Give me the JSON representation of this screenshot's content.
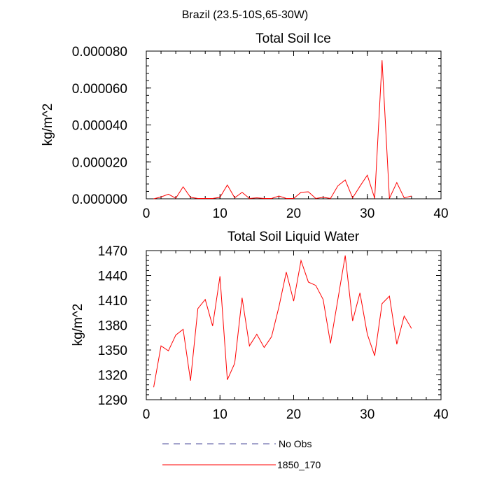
{
  "figure": {
    "suptitle": "Brazil (23.5-10S,65-30W)",
    "legend": [
      {
        "label": "No Obs",
        "color": "#4a4a9a",
        "style": "dashed"
      },
      {
        "label": "1850_170",
        "color": "#ff0000",
        "style": "solid"
      }
    ]
  },
  "chart_data": [
    {
      "type": "line",
      "title": "Total Soil Ice",
      "xlabel": "",
      "ylabel": "kg/m^2",
      "xlim": [
        0,
        40
      ],
      "ylim": [
        0,
        8e-05
      ],
      "xticks": [
        0,
        10,
        20,
        30,
        40
      ],
      "xticklabels": [
        "0",
        "10",
        "20",
        "30",
        "40"
      ],
      "yticks": [
        0,
        2e-05,
        4e-05,
        6e-05,
        8e-05
      ],
      "yticklabels": [
        "0.000000",
        "0.000020",
        "0.000040",
        "0.000060",
        "0.000080"
      ],
      "grid": false,
      "series": [
        {
          "name": "1850_170",
          "color": "#ff0000",
          "x": [
            1,
            2,
            3,
            4,
            5,
            6,
            7,
            8,
            9,
            10,
            11,
            12,
            13,
            14,
            15,
            16,
            17,
            18,
            19,
            20,
            21,
            22,
            23,
            24,
            25,
            26,
            27,
            28,
            29,
            30,
            31,
            32,
            33,
            34,
            35,
            36
          ],
          "y": [
            0,
            1e-06,
            2.5e-06,
            3e-07,
            6.5e-06,
            8e-07,
            2e-07,
            2e-07,
            2e-07,
            8e-07,
            7.5e-06,
            5e-07,
            3.5e-06,
            2e-07,
            5e-07,
            2e-07,
            2e-07,
            1.5e-06,
            2e-07,
            2e-07,
            3.5e-06,
            3.8e-06,
            2e-07,
            8e-07,
            2e-07,
            7e-06,
            1.02e-05,
            5e-07,
            6.8e-06,
            1.28e-05,
            2e-07,
            7.5e-05,
            2e-07,
            8.8e-06,
            5e-07,
            1.5e-06
          ]
        }
      ]
    },
    {
      "type": "line",
      "title": "Total Soil Liquid Water",
      "xlabel": "",
      "ylabel": "kg/m^2",
      "xlim": [
        0,
        40
      ],
      "ylim": [
        1290,
        1470
      ],
      "xticks": [
        0,
        10,
        20,
        30,
        40
      ],
      "xticklabels": [
        "0",
        "10",
        "20",
        "30",
        "40"
      ],
      "yticks": [
        1290,
        1320,
        1350,
        1380,
        1410,
        1440,
        1470
      ],
      "yticklabels": [
        "1290",
        "1320",
        "1350",
        "1380",
        "1410",
        "1440",
        "1470"
      ],
      "grid": false,
      "series": [
        {
          "name": "1850_170",
          "color": "#ff0000",
          "x": [
            1,
            2,
            3,
            4,
            5,
            6,
            7,
            8,
            9,
            10,
            11,
            12,
            13,
            14,
            15,
            16,
            17,
            18,
            19,
            20,
            21,
            22,
            23,
            24,
            25,
            26,
            27,
            28,
            29,
            30,
            31,
            32,
            33,
            34,
            35,
            36
          ],
          "y": [
            1305,
            1355,
            1349,
            1368,
            1375,
            1313,
            1400,
            1411,
            1379,
            1439,
            1314,
            1334,
            1413,
            1355,
            1369,
            1353,
            1366,
            1402,
            1444,
            1409,
            1458,
            1432,
            1428,
            1411,
            1358,
            1411,
            1464,
            1385,
            1419,
            1369,
            1343,
            1406,
            1415,
            1357,
            1391,
            1376
          ]
        }
      ]
    }
  ]
}
